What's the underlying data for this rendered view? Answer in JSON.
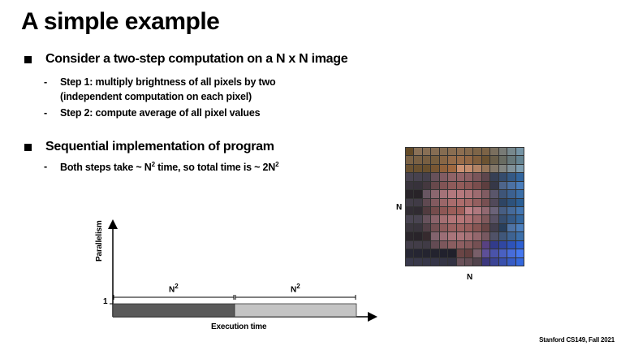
{
  "title": "A simple example",
  "bullets": [
    {
      "text": "Consider a two-step computation on a N x N image",
      "subs": [
        {
          "dash": "-",
          "line1": "Step 1: multiply brightness of all pixels by two",
          "line2": "(independent computation on each pixel)"
        },
        {
          "dash": "-",
          "line1": "Step 2: compute average of all pixel values"
        }
      ]
    },
    {
      "text": "Sequential implementation of program",
      "subs": [
        {
          "dash": "-",
          "line1_pre": "Both steps take ~ N",
          "line1_sup": "2",
          "line1_post": " time, so total time is ~ 2N",
          "line1_sup2": "2"
        }
      ]
    }
  ],
  "chart": {
    "ylabel": "Parallelism",
    "tick": "1",
    "xlabel": "Execution time",
    "segments": [
      {
        "label_base": "N",
        "label_sup": "2",
        "color": "#5a5a5a",
        "parallelism": 1,
        "duration": 1
      },
      {
        "label_base": "N",
        "label_sup": "2",
        "color": "#c4c4c4",
        "parallelism": 1,
        "duration": 1
      }
    ]
  },
  "image": {
    "label_side": "N",
    "label_bottom": "N"
  },
  "footer": "Stanford CS149, Fall 2021"
}
